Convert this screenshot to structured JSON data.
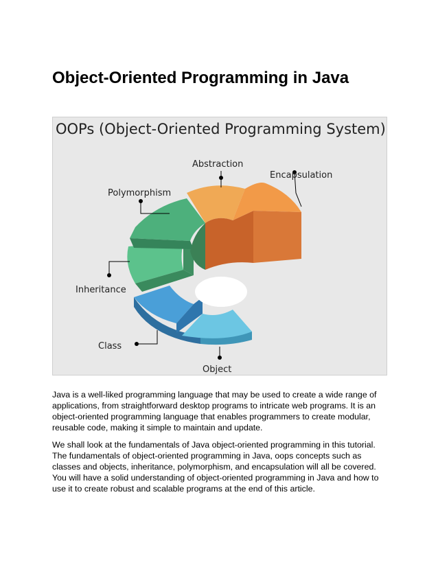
{
  "document": {
    "title": "Object-Oriented Programming in Java",
    "figure": {
      "title": "OOPs (Object-Oriented Programming System)",
      "labels": {
        "abstraction": "Abstraction",
        "encapsulation": "Encapsulation",
        "polymorphism": "Polymorphism",
        "inheritance": "Inheritance",
        "class": "Class",
        "object": "Object"
      },
      "colors": {
        "abstraction": "#f0a955",
        "encapsulation": "#f29a48",
        "polymorphism": "#4db07c",
        "inheritance": "#5cc28c",
        "class": "#4a9fd8",
        "object": "#6cc6e3",
        "background": "#e8e8e8"
      }
    },
    "paragraphs": [
      "Java is a well-liked programming language that may be used to create a wide range of applications, from straightforward desktop programs to intricate web programs. It is an object-oriented programming language that enables programmers to create modular, reusable code, making it simple to maintain and update.",
      "We shall look at the fundamentals of Java object-oriented programming in this tutorial. The fundamentals of object-oriented programming in Java, oops concepts such as classes and objects, inheritance, polymorphism, and encapsulation will all be covered. You will have a solid understanding of object-oriented programming in Java and how to use it to create robust and scalable programs at the end of this article."
    ]
  }
}
